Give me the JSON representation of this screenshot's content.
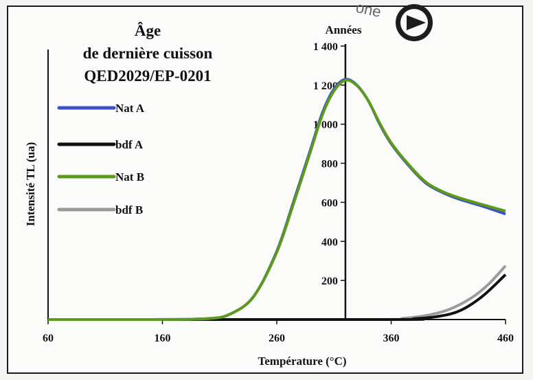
{
  "chart_data": {
    "type": "line",
    "title_lines": [
      "Âge",
      "de dernière cuisson",
      "QED2029/EP-0201"
    ],
    "xlabel": "Température (°C)",
    "ylabel": "Intensité TL (ua)",
    "y2_title": "Années",
    "xlim": [
      60,
      460
    ],
    "ylim": [
      0,
      1400
    ],
    "x_ticks": [
      "60",
      "160",
      "260",
      "360",
      "460"
    ],
    "y_ticks": [
      "200",
      "400",
      "600",
      "800",
      "1 000",
      "1 200",
      "1 400"
    ],
    "y_tick_values": [
      200,
      400,
      600,
      800,
      1000,
      1200,
      1400
    ],
    "y_axis_at_x": 320,
    "legend_placement": "left",
    "series": [
      {
        "name": "Nat A",
        "color": "#3a4fc8",
        "x": [
          60,
          150,
          200,
          220,
          240,
          260,
          275,
          290,
          300,
          310,
          320,
          330,
          340,
          350,
          360,
          375,
          390,
          405,
          420,
          440,
          460
        ],
        "y": [
          0,
          0,
          5,
          30,
          120,
          350,
          610,
          880,
          1060,
          1180,
          1230,
          1200,
          1120,
          1000,
          900,
          790,
          700,
          650,
          615,
          580,
          540
        ]
      },
      {
        "name": "bdf A",
        "color": "#111111",
        "x": [
          60,
          360,
          380,
          400,
          420,
          440,
          460
        ],
        "y": [
          0,
          0,
          4,
          15,
          45,
          120,
          230
        ]
      },
      {
        "name": "Nat B",
        "color": "#5c9a1c",
        "x": [
          60,
          150,
          200,
          220,
          240,
          260,
          275,
          290,
          300,
          310,
          320,
          330,
          340,
          350,
          360,
          375,
          390,
          405,
          420,
          440,
          460
        ],
        "y": [
          0,
          0,
          5,
          30,
          120,
          345,
          600,
          870,
          1050,
          1170,
          1225,
          1198,
          1120,
          1005,
          905,
          795,
          705,
          655,
          622,
          588,
          555
        ]
      },
      {
        "name": "bdf B",
        "color": "#9e9a9a",
        "x": [
          60,
          350,
          370,
          390,
          410,
          430,
          445,
          460
        ],
        "y": [
          0,
          0,
          6,
          20,
          50,
          110,
          180,
          275
        ]
      }
    ],
    "grid": false
  },
  "stamp_text": "one"
}
